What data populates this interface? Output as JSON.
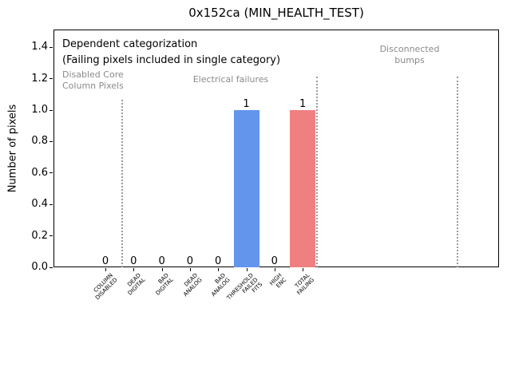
{
  "chart_data": {
    "type": "bar",
    "title": "0x152ca (MIN_HEALTH_TEST)",
    "ylabel": "Number of pixels",
    "xlabel": "",
    "ylim": [
      0,
      1.51
    ],
    "grid": false,
    "legend": null,
    "ytick_labels": [
      "0.0",
      "0.2",
      "0.4",
      "0.6",
      "0.8",
      "1.0",
      "1.2",
      "1.4"
    ],
    "ytick_values": [
      0.0,
      0.2,
      0.4,
      0.6,
      0.8,
      1.0,
      1.2,
      1.4
    ],
    "categories": [
      {
        "label": "COLUMN DISABLED",
        "lines": [
          "COLUMN",
          "DISABLED"
        ]
      },
      {
        "label": "DEAD DIGITAL",
        "lines": [
          "DEAD",
          "DIGITAL"
        ]
      },
      {
        "label": "BAD DIGITAL",
        "lines": [
          "BAD",
          "DIGITAL"
        ]
      },
      {
        "label": "DEAD ANALOG",
        "lines": [
          "DEAD",
          "ANALOG"
        ]
      },
      {
        "label": "BAD ANALOG",
        "lines": [
          "BAD",
          "ANALOG"
        ]
      },
      {
        "label": "THRESHOLD FAILED FITS",
        "lines": [
          "THRESHOLD",
          "FAILED",
          "FITS"
        ]
      },
      {
        "label": "HIGH ENC",
        "lines": [
          "HIGH",
          "ENC"
        ]
      },
      {
        "label": "TOTAL FAILING",
        "lines": [
          "TOTAL",
          "FAILING"
        ]
      }
    ],
    "values": [
      0,
      0,
      0,
      0,
      0,
      1,
      0,
      1
    ],
    "bar_value_labels": [
      "0",
      "0",
      "0",
      "0",
      "0",
      "1",
      "0",
      "1"
    ],
    "bar_colors": [
      "#6495ed",
      "#6495ed",
      "#6495ed",
      "#6495ed",
      "#6495ed",
      "#6495ed",
      "#6495ed",
      "#f08080"
    ],
    "accent_colors": {
      "blue_bar": "#6495ed",
      "red_bar": "#f08080",
      "gray_text": "#8a8a8a",
      "separator": "#9a9a9a"
    },
    "separators": [
      {
        "name": "separator-disabled-core",
        "x": 153,
        "y_top": 125
      },
      {
        "name": "separator-electrical",
        "x": 397,
        "y_top": 96
      },
      {
        "name": "separator-disconnected",
        "x": 573,
        "y_top": 96
      }
    ],
    "annotations": [
      {
        "name": "annotation-dependent-categorization",
        "text": "Dependent categorization",
        "color": "#000000",
        "x": 78,
        "y": 47,
        "align": "left",
        "size": 13,
        "line_height": 17
      },
      {
        "name": "annotation-failing-note",
        "text": "(Failing pixels included in single category)",
        "color": "#000000",
        "x": 78,
        "y": 67,
        "align": "left",
        "size": 13,
        "line_height": 17
      },
      {
        "name": "annotation-disabled-core-column-pixels",
        "text": "Disabled Core\nColumn Pixels",
        "color": "#8a8a8a",
        "x": 78,
        "y": 87,
        "align": "left",
        "size": 11,
        "line_height": 14
      },
      {
        "name": "annotation-electrical-failures",
        "text": "Electrical failures",
        "color": "#8a8a8a",
        "x": 289,
        "y": 93,
        "align": "center",
        "size": 11,
        "line_height": 14
      },
      {
        "name": "annotation-disconnected-bumps",
        "text": "Disconnected\nbumps",
        "color": "#8a8a8a",
        "x": 513,
        "y": 55,
        "align": "center",
        "size": 11,
        "line_height": 14
      }
    ]
  }
}
